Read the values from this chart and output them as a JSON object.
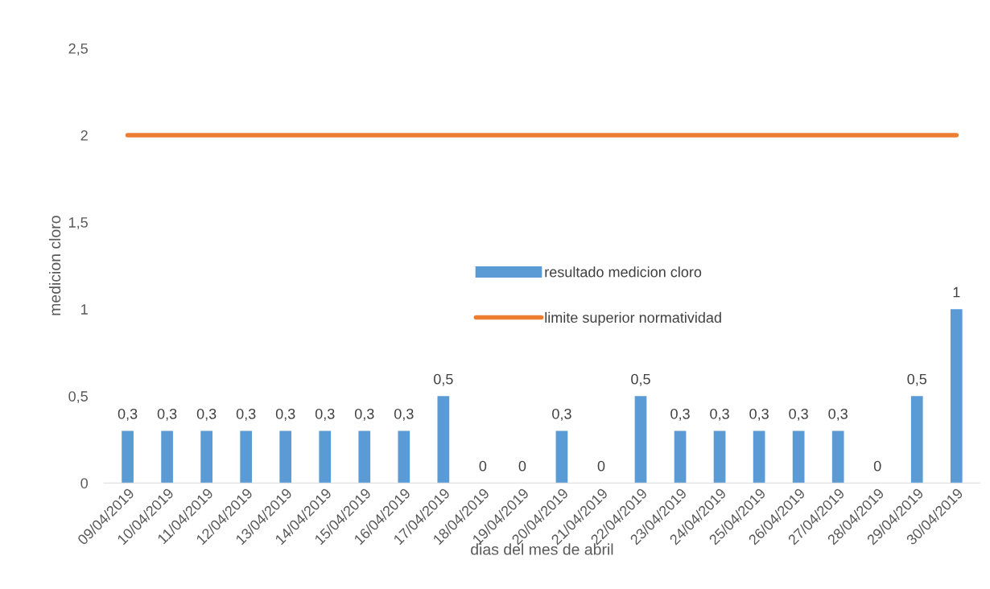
{
  "chart_data": {
    "type": "bar",
    "xlabel": "dias del mes de abril",
    "ylabel": "medicion cloro",
    "categories": [
      "09/04/2019",
      "10/04/2019",
      "11/04/2019",
      "12/04/2019",
      "13/04/2019",
      "14/04/2019",
      "15/04/2019",
      "16/04/2019",
      "17/04/2019",
      "18/04/2019",
      "19/04/2019",
      "20/04/2019",
      "21/04/2019",
      "22/04/2019",
      "23/04/2019",
      "24/04/2019",
      "25/04/2019",
      "26/04/2019",
      "27/04/2019",
      "28/04/2019",
      "29/04/2019",
      "30/04/2019"
    ],
    "series": [
      {
        "name": "resultado medicion cloro",
        "color": "#5b9bd5",
        "values": [
          0.3,
          0.3,
          0.3,
          0.3,
          0.3,
          0.3,
          0.3,
          0.3,
          0.5,
          0,
          0,
          0.3,
          0,
          0.5,
          0.3,
          0.3,
          0.3,
          0.3,
          0.3,
          0,
          0.5,
          1
        ],
        "value_labels": [
          "0,3",
          "0,3",
          "0,3",
          "0,3",
          "0,3",
          "0,3",
          "0,3",
          "0,3",
          "0,5",
          "0",
          "0",
          "0,3",
          "0",
          "0,5",
          "0,3",
          "0,3",
          "0,3",
          "0,3",
          "0,3",
          "0",
          "0,5",
          "1"
        ]
      },
      {
        "name": "limite superior normatividad",
        "type": "line",
        "color": "#ed7d31",
        "values": [
          2,
          2,
          2,
          2,
          2,
          2,
          2,
          2,
          2,
          2,
          2,
          2,
          2,
          2,
          2,
          2,
          2,
          2,
          2,
          2,
          2,
          2
        ]
      }
    ],
    "ylim": [
      0,
      2.5
    ],
    "yticks": [
      0,
      {
        "value": 0.5,
        "label": "0,5"
      },
      1,
      {
        "value": 1.5,
        "label": "1,5"
      },
      2,
      {
        "value": 2.5,
        "label": "2,5"
      }
    ],
    "grid": false,
    "legend": "center",
    "marker": "none",
    "line_style": "solid"
  }
}
